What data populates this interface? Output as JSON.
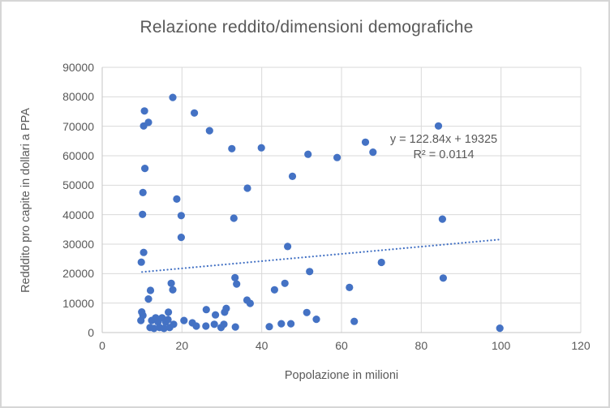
{
  "chart_data": {
    "type": "scatter",
    "title": "Relazione reddito/dimensioni demografiche",
    "xlabel": "Popolazione in milioni",
    "ylabel": "Redddito pro capite in dollari a PPA",
    "xlim": [
      0,
      120
    ],
    "ylim": [
      0,
      90000
    ],
    "x_ticks": [
      0,
      20,
      40,
      60,
      80,
      100,
      120
    ],
    "y_ticks": [
      0,
      10000,
      20000,
      30000,
      40000,
      50000,
      60000,
      70000,
      80000,
      90000
    ],
    "grid": true,
    "legend": "none",
    "series_color": "#4472C4",
    "grid_color": "#d9d9d9",
    "axis_color": "#c6c6c6",
    "text_color": "#595959",
    "trendline": {
      "equation_label": "y = 122.84x + 19325",
      "r_squared_label": "R² = 0.0114",
      "slope": 122.84,
      "intercept": 19325,
      "x_start": 10,
      "x_end": 100,
      "style": "dotted"
    },
    "points": [
      [
        17.7,
        79800
      ],
      [
        10.6,
        75200
      ],
      [
        23.1,
        74500
      ],
      [
        11.6,
        71300
      ],
      [
        10.4,
        70100
      ],
      [
        84.3,
        70100
      ],
      [
        26.9,
        68500
      ],
      [
        66.0,
        64600
      ],
      [
        39.9,
        62700
      ],
      [
        32.5,
        62400
      ],
      [
        67.9,
        61200
      ],
      [
        51.6,
        60500
      ],
      [
        58.9,
        59400
      ],
      [
        10.7,
        55700
      ],
      [
        47.7,
        53000
      ],
      [
        36.4,
        49000
      ],
      [
        10.2,
        47500
      ],
      [
        18.7,
        45300
      ],
      [
        10.1,
        40100
      ],
      [
        19.8,
        39700
      ],
      [
        33.0,
        38800
      ],
      [
        85.3,
        38500
      ],
      [
        19.8,
        32300
      ],
      [
        46.5,
        29200
      ],
      [
        10.4,
        27200
      ],
      [
        9.8,
        23900
      ],
      [
        70.0,
        23800
      ],
      [
        52.0,
        20700
      ],
      [
        85.5,
        18500
      ],
      [
        33.3,
        18600
      ],
      [
        33.7,
        16500
      ],
      [
        45.8,
        16700
      ],
      [
        43.2,
        14500
      ],
      [
        62.0,
        15300
      ],
      [
        17.3,
        16700
      ],
      [
        17.7,
        14500
      ],
      [
        12.1,
        14300
      ],
      [
        11.6,
        11400
      ],
      [
        36.3,
        11000
      ],
      [
        37.1,
        9900
      ],
      [
        9.9,
        7000
      ],
      [
        10.2,
        5800
      ],
      [
        16.6,
        6900
      ],
      [
        26.1,
        7800
      ],
      [
        30.7,
        6900
      ],
      [
        31.1,
        8200
      ],
      [
        28.4,
        6000
      ],
      [
        9.7,
        4100
      ],
      [
        12.4,
        4100
      ],
      [
        13.4,
        5000
      ],
      [
        14.0,
        3600
      ],
      [
        15.0,
        5000
      ],
      [
        15.9,
        3600
      ],
      [
        16.5,
        4400
      ],
      [
        12.0,
        1700
      ],
      [
        13.0,
        1400
      ],
      [
        14.4,
        1700
      ],
      [
        15.5,
        1400
      ],
      [
        16.9,
        1700
      ],
      [
        17.9,
        2800
      ],
      [
        20.5,
        4100
      ],
      [
        22.6,
        3300
      ],
      [
        23.6,
        2200
      ],
      [
        26.0,
        2200
      ],
      [
        28.1,
        2800
      ],
      [
        29.8,
        1700
      ],
      [
        30.5,
        2800
      ],
      [
        33.4,
        1900
      ],
      [
        41.9,
        2000
      ],
      [
        44.9,
        3000
      ],
      [
        47.3,
        3000
      ],
      [
        51.3,
        6800
      ],
      [
        53.7,
        4500
      ],
      [
        63.2,
        3800
      ],
      [
        99.7,
        1500
      ]
    ]
  }
}
